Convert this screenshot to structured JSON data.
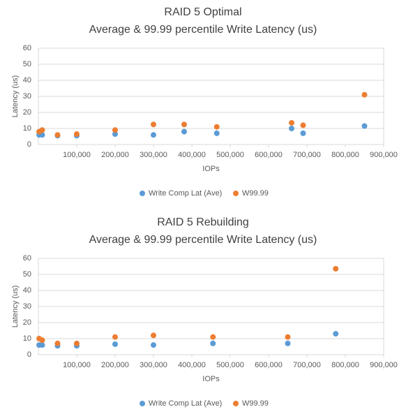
{
  "chart_data": [
    {
      "type": "scatter",
      "title": "RAID 5 Optimal",
      "subtitle": "Average & 99.99 percentile Write Latency (us)",
      "xlabel": "IOPs",
      "ylabel": "Latency (us)",
      "xlim": [
        0,
        900000
      ],
      "ylim": [
        0,
        60
      ],
      "xticks": [
        {
          "value": 100000,
          "label": "100,000"
        },
        {
          "value": 200000,
          "label": "200,000"
        },
        {
          "value": 300000,
          "label": "300,000"
        },
        {
          "value": 400000,
          "label": "400,000"
        },
        {
          "value": 500000,
          "label": "500,000"
        },
        {
          "value": 600000,
          "label": "600,000"
        },
        {
          "value": 700000,
          "label": "700,000"
        },
        {
          "value": 800000,
          "label": "800,000"
        },
        {
          "value": 900000,
          "label": "900,000"
        }
      ],
      "yticks": [
        0,
        10,
        20,
        30,
        40,
        50,
        60
      ],
      "grid": true,
      "series": [
        {
          "name": "Write Comp Lat (Ave)",
          "color": "#5b9bd5",
          "x": [
            2000,
            10000,
            50000,
            100000,
            200000,
            300000,
            380000,
            465000,
            660000,
            690000,
            850000
          ],
          "values": [
            6,
            6,
            5.5,
            5.5,
            6.5,
            6,
            8,
            7,
            10,
            7,
            11.5
          ]
        },
        {
          "name": "W99.99",
          "color": "#ed7d31",
          "x": [
            2000,
            10000,
            50000,
            100000,
            200000,
            300000,
            380000,
            465000,
            660000,
            690000,
            850000
          ],
          "values": [
            8,
            9,
            6,
            6.5,
            9,
            12.5,
            12.5,
            11,
            13.5,
            12,
            31
          ]
        }
      ]
    },
    {
      "type": "scatter",
      "title": "RAID 5 Rebuilding",
      "subtitle": "Average & 99.99 percentile Write Latency (us)",
      "xlabel": "IOPs",
      "ylabel": "Latency (us)",
      "xlim": [
        0,
        900000
      ],
      "ylim": [
        0,
        60
      ],
      "xticks": [
        {
          "value": 100000,
          "label": "100,000"
        },
        {
          "value": 200000,
          "label": "200,000"
        },
        {
          "value": 300000,
          "label": "300,000"
        },
        {
          "value": 400000,
          "label": "400,000"
        },
        {
          "value": 500000,
          "label": "500,000"
        },
        {
          "value": 600000,
          "label": "600,000"
        },
        {
          "value": 700000,
          "label": "700,000"
        },
        {
          "value": 800000,
          "label": "800,000"
        },
        {
          "value": 900000,
          "label": "900,000"
        }
      ],
      "yticks": [
        0,
        10,
        20,
        30,
        40,
        50,
        60
      ],
      "grid": true,
      "series": [
        {
          "name": "Write Comp Lat (Ave)",
          "color": "#5b9bd5",
          "x": [
            2000,
            10000,
            50000,
            100000,
            200000,
            300000,
            455000,
            650000,
            775000
          ],
          "values": [
            6,
            6,
            5.5,
            5.5,
            6.5,
            6,
            7,
            7,
            13
          ]
        },
        {
          "name": "W99.99",
          "color": "#ed7d31",
          "x": [
            2000,
            10000,
            50000,
            100000,
            200000,
            300000,
            455000,
            650000,
            775000
          ],
          "values": [
            10,
            9,
            7,
            7,
            11,
            12,
            11,
            11,
            53.5
          ]
        }
      ]
    }
  ]
}
